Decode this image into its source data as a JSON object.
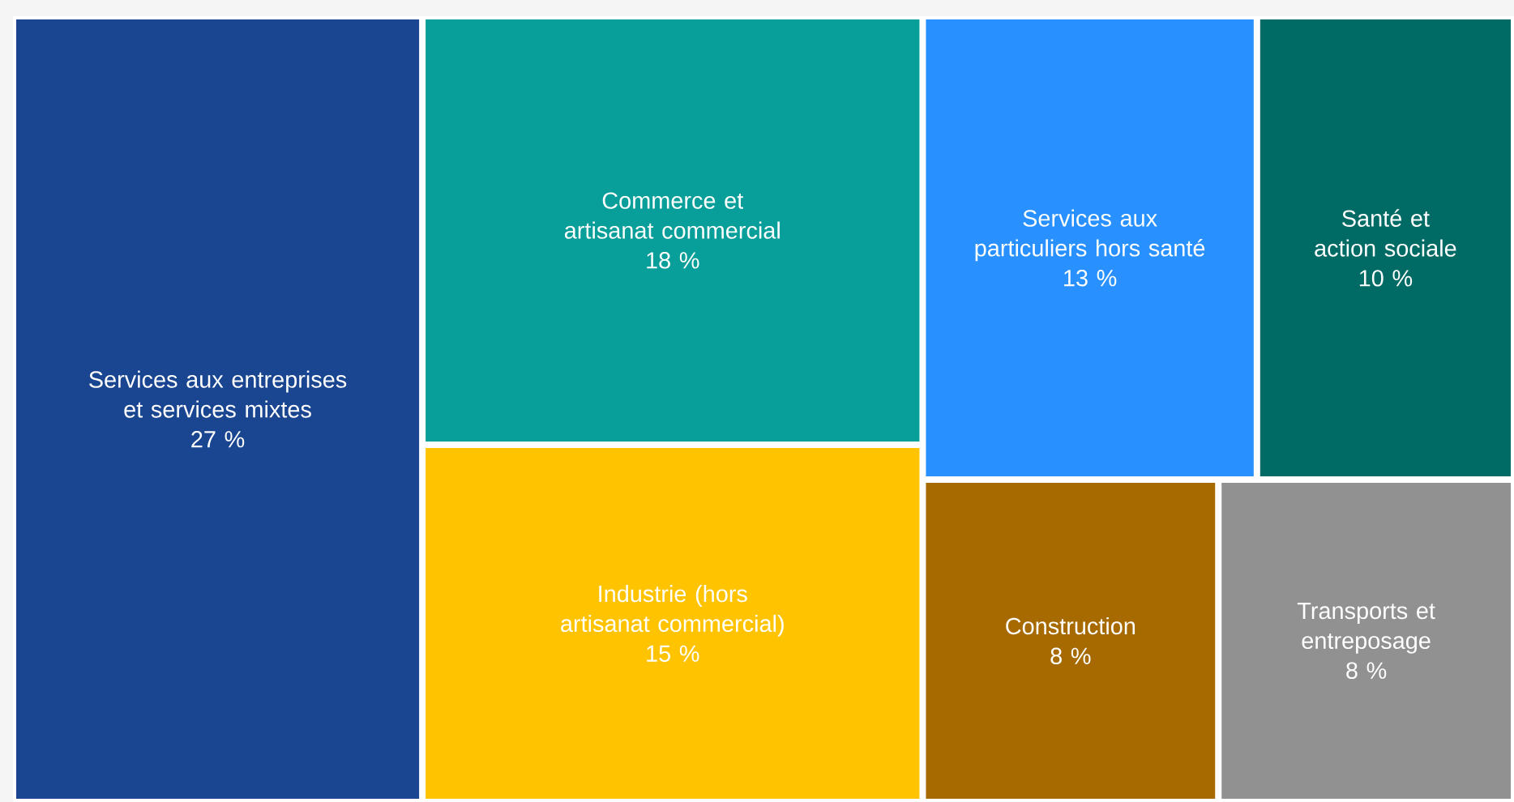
{
  "chart_data": {
    "type": "other",
    "categories": [
      "Services aux entreprises et services mixtes",
      "Commerce et artisanat commercial",
      "Industrie (hors artisanat commercial)",
      "Services aux particuliers hors santé",
      "Santé et action sociale",
      "Construction",
      "Transports et entreposage"
    ],
    "values": [
      27,
      18,
      15,
      13,
      10,
      8,
      8
    ],
    "value_labels": [
      "27 %",
      "18 %",
      "15 %",
      "13 %",
      "10 %",
      "8 %",
      "8 %"
    ],
    "colors": [
      "#1a4590",
      "#089e99",
      "#ffc300",
      "#2891ff",
      "#006a64",
      "#a66a00",
      "#919191"
    ]
  }
}
